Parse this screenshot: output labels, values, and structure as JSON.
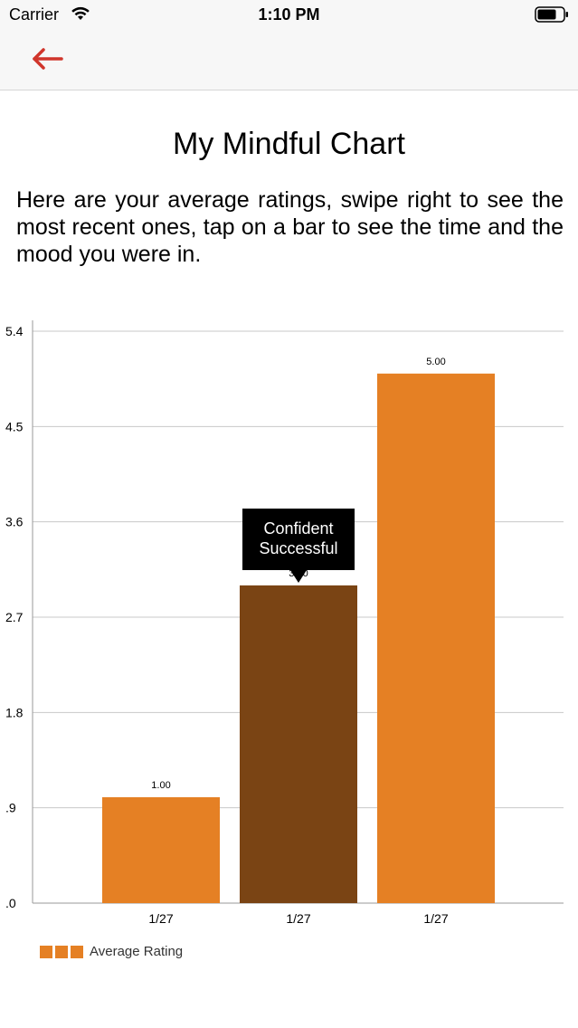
{
  "status_bar": {
    "carrier": "Carrier",
    "time": "1:10 PM",
    "icons": [
      "wifi-icon",
      "battery-icon"
    ]
  },
  "nav": {
    "back_icon": "arrow-left-icon",
    "accent_color": "#d0352b"
  },
  "page": {
    "title": "My Mindful Chart",
    "intro": "Here are your average ratings, swipe right to see the most recent ones, tap on a bar to see the time and the mood you were in."
  },
  "tooltip": {
    "line1": "Confident",
    "line2": "Successful"
  },
  "colors": {
    "bar": "#e58024",
    "bar_selected": "#7a4414",
    "grid": "#c8c8c8",
    "axis": "#9a9a9a"
  },
  "chart_data": {
    "type": "bar",
    "categories": [
      "1/27",
      "1/27",
      "1/27"
    ],
    "series": [
      {
        "name": "Average Rating",
        "values": [
          1.0,
          3.0,
          5.0
        ]
      }
    ],
    "value_labels": [
      "1.00",
      "3.00",
      "5.00"
    ],
    "selected_index": 1,
    "ylim": [
      0,
      5.4
    ],
    "yticks": [
      0,
      0.9,
      1.8,
      2.7,
      3.6,
      4.5,
      5.4
    ],
    "ytick_labels": [
      ".0",
      ".9",
      "1.8",
      "2.7",
      "3.6",
      "4.5",
      "5.4"
    ],
    "grid": true,
    "legend_placement": "bottom-left",
    "title": "",
    "xlabel": "",
    "ylabel": ""
  }
}
